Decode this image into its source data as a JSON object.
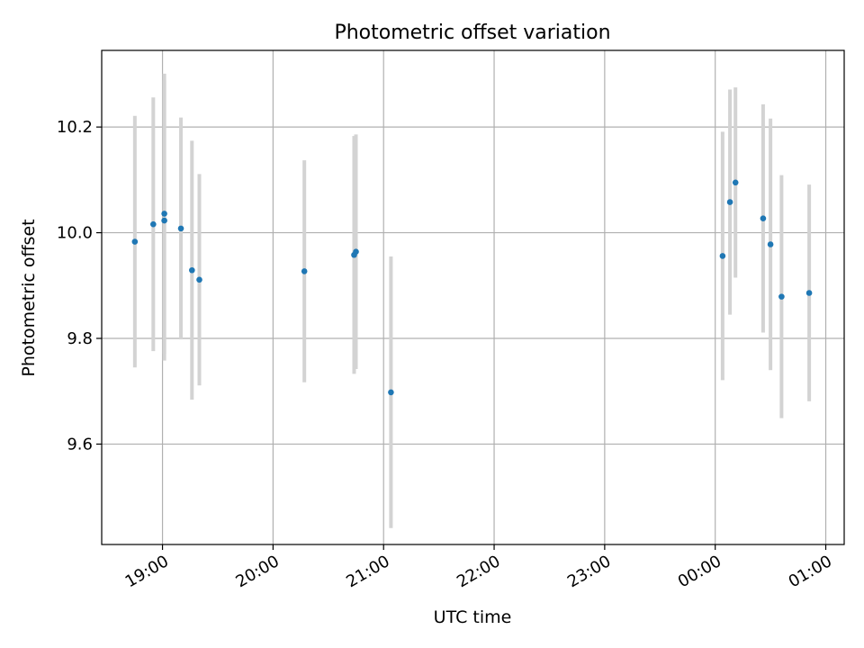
{
  "chart_data": {
    "type": "scatter",
    "title": "Photometric offset variation",
    "xlabel": "UTC time",
    "ylabel": "Photometric offset",
    "x_ticks": [
      "19:00",
      "20:00",
      "21:00",
      "22:00",
      "23:00",
      "00:00",
      "01:00"
    ],
    "y_ticks": [
      "9.6",
      "9.8",
      "10.0",
      "10.2"
    ],
    "x_range": [
      "18:27",
      "01:10"
    ],
    "ylim": [
      9.41,
      10.345
    ],
    "grid": true,
    "legend": "none",
    "points": [
      {
        "t": "18:45",
        "y": 9.983,
        "err": 0.238
      },
      {
        "t": "18:55",
        "y": 10.016,
        "err": 0.24
      },
      {
        "t": "19:01",
        "y": 10.036,
        "err": 0.265
      },
      {
        "t": "19:01",
        "y": 10.023,
        "err": 0.265
      },
      {
        "t": "19:10",
        "y": 10.008,
        "err": 0.21
      },
      {
        "t": "19:16",
        "y": 9.929,
        "err": 0.245
      },
      {
        "t": "19:20",
        "y": 9.911,
        "err": 0.2
      },
      {
        "t": "20:17",
        "y": 9.927,
        "err": 0.21
      },
      {
        "t": "20:44",
        "y": 9.958,
        "err": 0.225
      },
      {
        "t": "20:45",
        "y": 9.964,
        "err": 0.222
      },
      {
        "t": "21:04",
        "y": 9.698,
        "err": 0.257
      },
      {
        "t": "00:04",
        "y": 9.956,
        "err": 0.235
      },
      {
        "t": "00:08",
        "y": 10.058,
        "err": 0.213
      },
      {
        "t": "00:11",
        "y": 10.095,
        "err": 0.18
      },
      {
        "t": "00:26",
        "y": 10.027,
        "err": 0.216
      },
      {
        "t": "00:30",
        "y": 9.978,
        "err": 0.238
      },
      {
        "t": "00:36",
        "y": 9.879,
        "err": 0.23
      },
      {
        "t": "00:51",
        "y": 9.886,
        "err": 0.205
      }
    ],
    "colors": {
      "marker": "#1f77b4",
      "errorbar": "#d3d3d3",
      "grid": "#b0b0b0",
      "axes": "#000000"
    }
  }
}
